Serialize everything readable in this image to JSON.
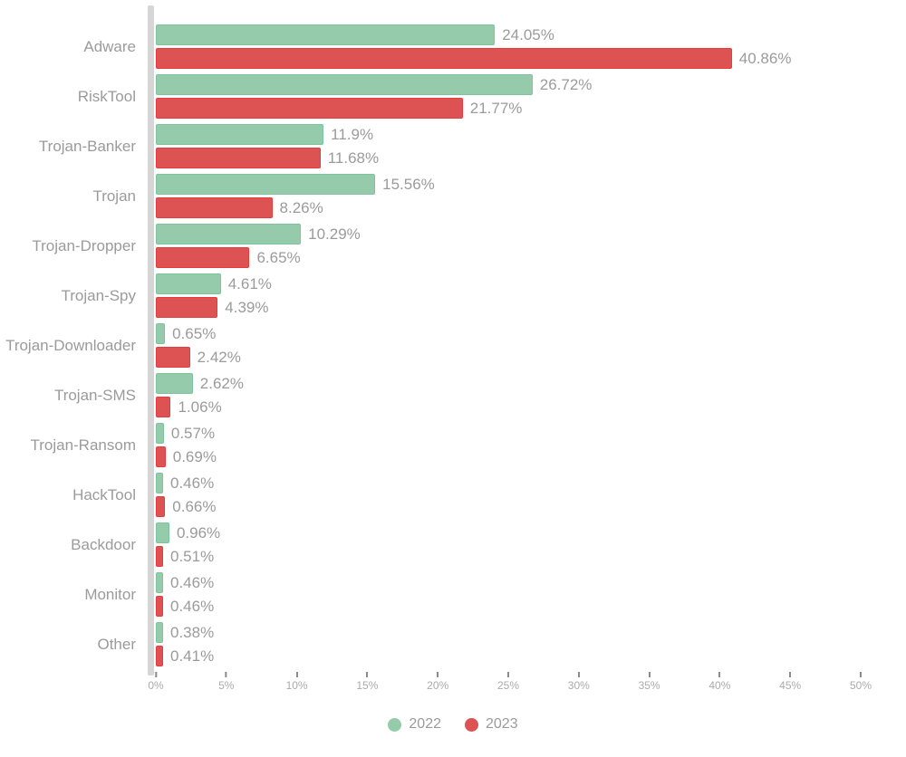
{
  "chart_data": {
    "type": "bar",
    "orientation": "horizontal",
    "title": "",
    "xlabel": "",
    "ylabel": "",
    "xlim": [
      0,
      50
    ],
    "x_ticks": [
      "0%",
      "5%",
      "10%",
      "15%",
      "20%",
      "25%",
      "30%",
      "35%",
      "40%",
      "45%",
      "50%"
    ],
    "grid": false,
    "legend_position": "bottom",
    "categories": [
      "Adware",
      "RiskTool",
      "Trojan-Banker",
      "Trojan",
      "Trojan-Dropper",
      "Trojan-Spy",
      "Trojan-Downloader",
      "Trojan-SMS",
      "Trojan-Ransom",
      "HackTool",
      "Backdoor",
      "Monitor",
      "Other"
    ],
    "series": [
      {
        "name": "2022",
        "color": "#95cbab",
        "values": [
          24.05,
          26.72,
          11.9,
          15.56,
          10.29,
          4.61,
          0.65,
          2.62,
          0.57,
          0.46,
          0.96,
          0.46,
          0.38
        ],
        "labels": [
          "24.05%",
          "26.72%",
          "11.9%",
          "15.56%",
          "10.29%",
          "4.61%",
          "0.65%",
          "2.62%",
          "0.57%",
          "0.46%",
          "0.96%",
          "0.46%",
          "0.38%"
        ]
      },
      {
        "name": "2023",
        "color": "#dd5252",
        "values": [
          40.86,
          21.77,
          11.68,
          8.26,
          6.65,
          4.39,
          2.42,
          1.06,
          0.69,
          0.66,
          0.51,
          0.46,
          0.41
        ],
        "labels": [
          "40.86%",
          "21.77%",
          "11.68%",
          "8.26%",
          "6.65%",
          "4.39%",
          "2.42%",
          "1.06%",
          "0.69%",
          "0.66%",
          "0.51%",
          "0.46%",
          "0.41%"
        ]
      }
    ]
  },
  "legend": {
    "items": [
      {
        "label": "2022",
        "color": "#95cbab"
      },
      {
        "label": "2023",
        "color": "#dd5252"
      }
    ]
  },
  "colors": {
    "background": "#ffffff",
    "axis_line": "#d6d6d6",
    "label_text": "#9b9b9b",
    "tick_text": "#ababab"
  }
}
